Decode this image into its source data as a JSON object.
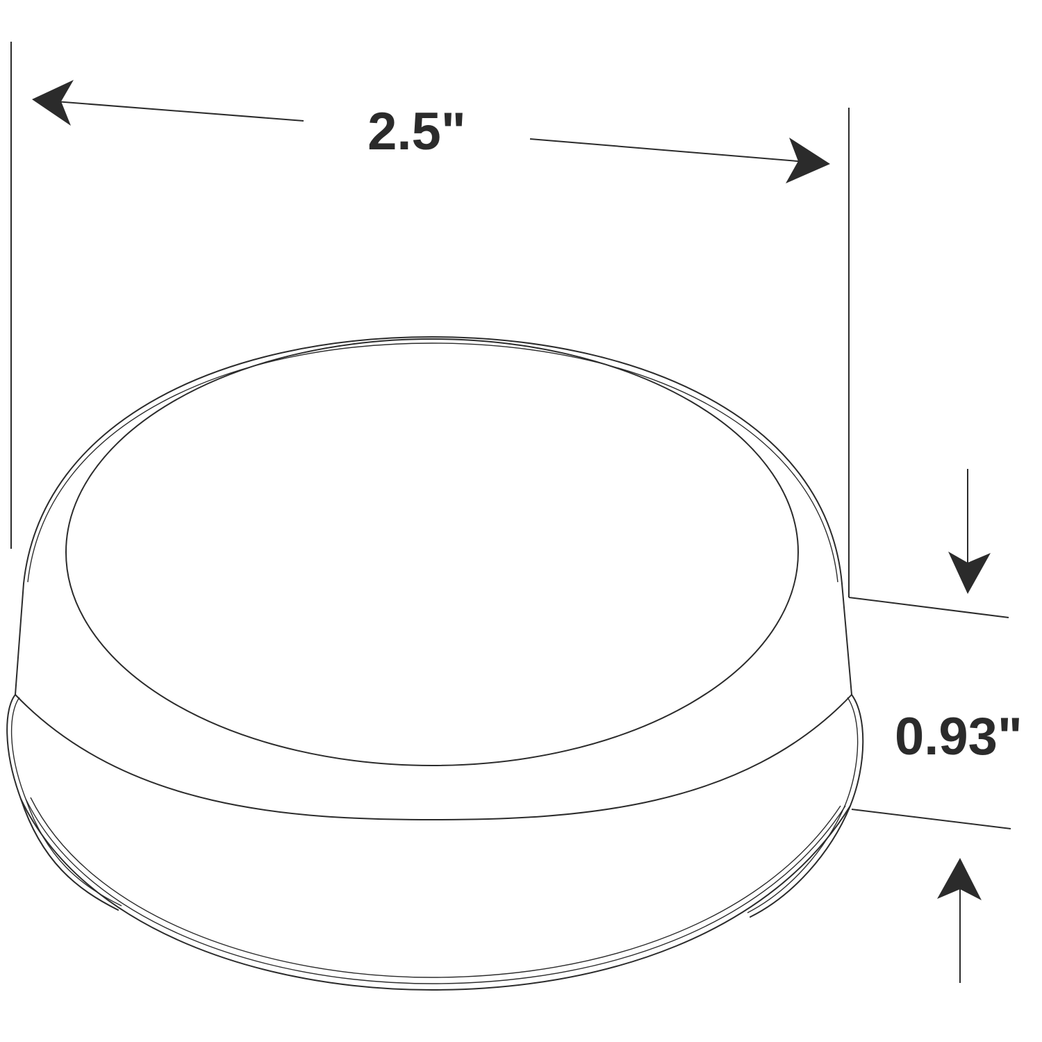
{
  "dimensions": {
    "width": {
      "label": "2.5\""
    },
    "height": {
      "label": "0.93\""
    }
  },
  "colors": {
    "line": "#2b2b2b",
    "background": "#ffffff"
  }
}
